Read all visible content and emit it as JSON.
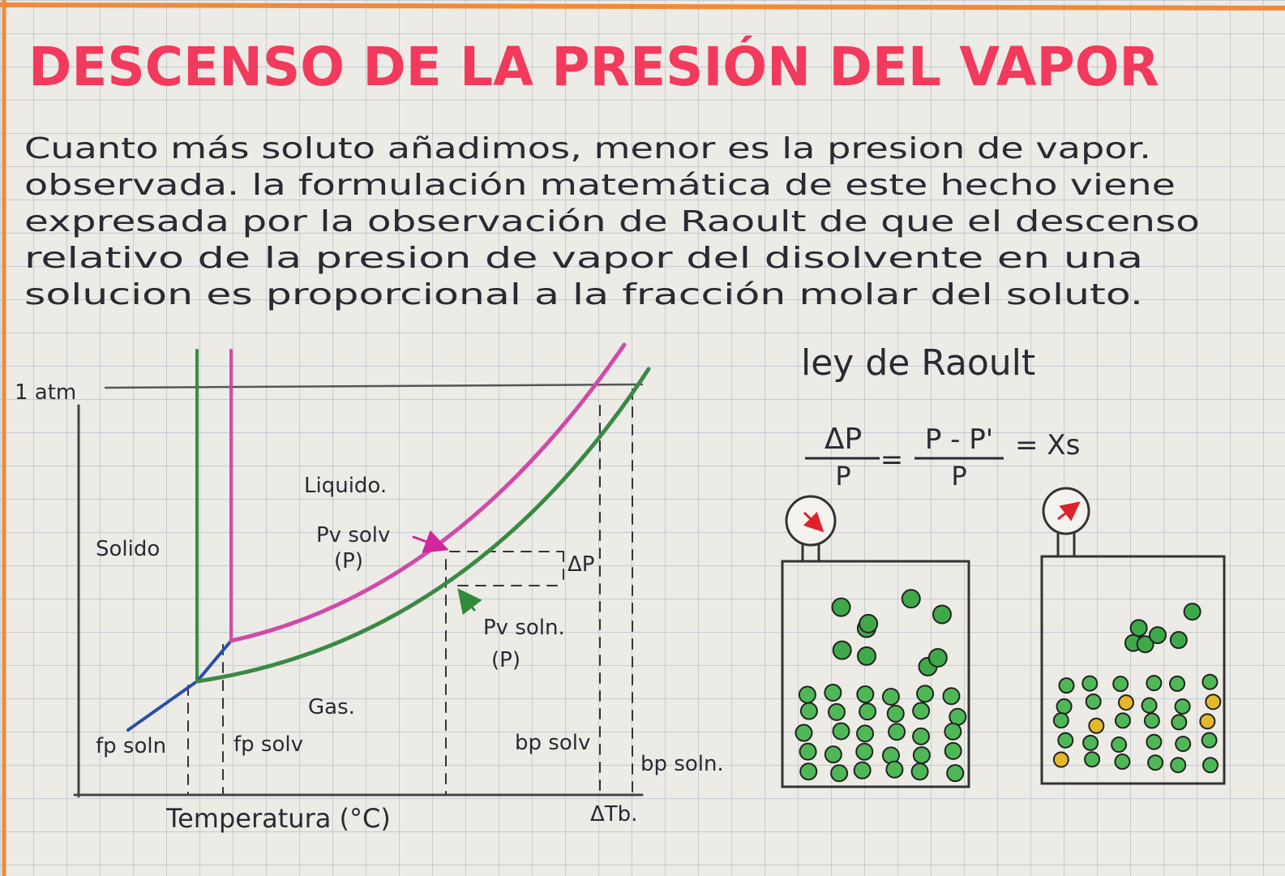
{
  "title": "DESCENSO DE LA PRESIÓN DEL VAPOR",
  "paragraph": [
    "Cuanto más soluto añadimos, menor es la presion de vapor.",
    "observada. la formulación matemática de este hecho viene",
    "expresada por la observación de Raoult de que el descenso",
    "relativo de la presion de vapor del disolvente en una",
    "solucion es proporcional a la fracción molar del soluto."
  ],
  "diagram": {
    "y_label": "1 atm",
    "x_label": "Temperatura (°C)",
    "regions": [
      "Solido",
      "Liquido.",
      "Gas."
    ],
    "pv_solv": "Pv solv",
    "pv_solv_sym": "(P)",
    "pv_soln": "Pv soln.",
    "pv_soln_sym": "(P)",
    "delta_p": "ΔP",
    "x_marks": [
      "fp soln",
      "fp solv",
      "bp solv",
      "bp soln."
    ],
    "delta_tb": "ΔTb."
  },
  "formula": {
    "heading": "ley de Raoult",
    "lhs_num": "ΔP",
    "lhs_den": "P",
    "eq1": "=",
    "mid_num": "P - P'",
    "mid_den": "P",
    "rhs": "= Xs"
  }
}
